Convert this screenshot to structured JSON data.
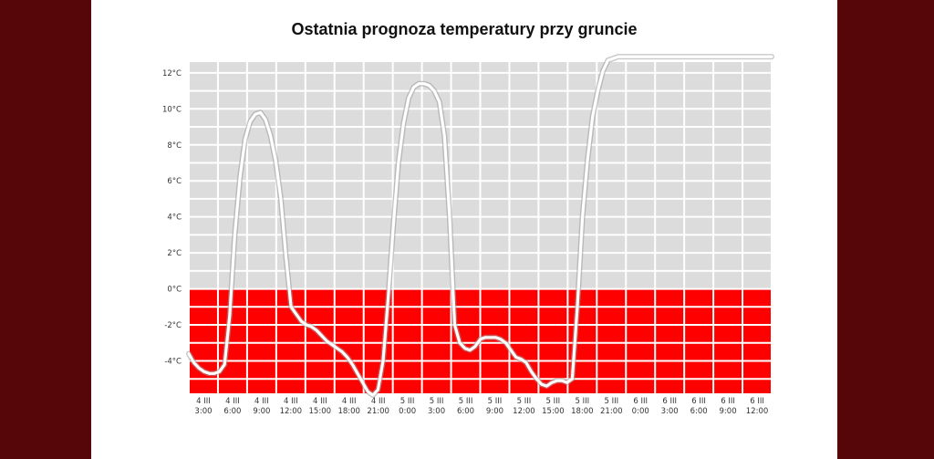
{
  "colors": {
    "page_background": "#560608",
    "panel_background": "#ffffff",
    "above_zero_fill": "#dcdcdc",
    "below_zero_fill": "#ff0000",
    "grid": "#ffffff",
    "line": "#ffffff"
  },
  "chart_data": {
    "type": "line",
    "title": "Ostatnia prognoza temperatury przy gruncie",
    "xlabel": "",
    "ylabel": "",
    "y_ticks": [
      "12°C",
      "10°C",
      "8°C",
      "6°C",
      "4°C",
      "2°C",
      "0°C",
      "-2°C",
      "-4°C"
    ],
    "ylim": [
      -5.8,
      12.6
    ],
    "grid": true,
    "x_ticks": [
      {
        "day": "4 III",
        "time": "3:00"
      },
      {
        "day": "4 III",
        "time": "6:00"
      },
      {
        "day": "4 III",
        "time": "9:00"
      },
      {
        "day": "4 III",
        "time": "12:00"
      },
      {
        "day": "4 III",
        "time": "15:00"
      },
      {
        "day": "4 III",
        "time": "18:00"
      },
      {
        "day": "4 III",
        "time": "21:00"
      },
      {
        "day": "5 III",
        "time": "0:00"
      },
      {
        "day": "5 III",
        "time": "3:00"
      },
      {
        "day": "5 III",
        "time": "6:00"
      },
      {
        "day": "5 III",
        "time": "9:00"
      },
      {
        "day": "5 III",
        "time": "12:00"
      },
      {
        "day": "5 III",
        "time": "15:00"
      },
      {
        "day": "5 III",
        "time": "18:00"
      },
      {
        "day": "5 III",
        "time": "21:00"
      },
      {
        "day": "6 III",
        "time": "0:00"
      },
      {
        "day": "6 III",
        "time": "3:00"
      },
      {
        "day": "6 III",
        "time": "6:00"
      },
      {
        "day": "6 III",
        "time": "9:00"
      },
      {
        "day": "6 III",
        "time": "12:00"
      }
    ],
    "series": [
      {
        "x_hours": [
          0,
          1,
          2,
          3,
          4,
          5,
          6,
          7,
          8,
          9,
          10,
          11,
          12,
          13,
          14,
          15,
          16,
          17,
          18,
          19,
          20,
          21,
          22,
          23,
          24,
          25,
          26,
          27,
          28,
          29,
          30,
          31,
          32,
          33,
          34,
          35,
          36,
          37,
          38,
          39,
          40,
          41,
          42,
          43,
          44,
          45,
          46,
          47,
          48,
          49,
          50,
          51,
          52,
          53,
          54,
          55,
          56,
          57,
          58,
          59,
          60,
          61,
          62,
          63,
          64,
          65,
          66,
          67,
          68,
          69,
          70,
          71,
          72,
          73,
          74,
          75,
          76,
          77,
          78,
          79,
          80,
          81,
          82,
          83,
          84,
          85,
          86,
          87,
          88,
          89,
          90,
          91,
          92,
          93,
          94,
          95,
          96,
          97,
          98,
          99,
          100,
          101,
          102,
          103,
          104,
          105,
          106,
          107,
          108,
          109,
          110,
          111,
          112,
          113,
          114
        ],
        "values": [
          -3.6,
          -4.1,
          -4.4,
          -4.6,
          -4.7,
          -4.7,
          -4.6,
          -4.2,
          -1.5,
          3.0,
          6.2,
          8.3,
          9.3,
          9.7,
          9.8,
          9.4,
          8.5,
          7.1,
          5.0,
          1.8,
          -1.0,
          -1.4,
          -1.8,
          -2.0,
          -2.1,
          -2.3,
          -2.6,
          -2.9,
          -3.1,
          -3.3,
          -3.5,
          -3.8,
          -4.2,
          -4.7,
          -5.2,
          -5.7,
          -5.9,
          -5.6,
          -4.0,
          -0.5,
          3.5,
          7.0,
          9.2,
          10.6,
          11.2,
          11.4,
          11.4,
          11.3,
          11.0,
          10.4,
          8.5,
          4.0,
          -2.0,
          -3.0,
          -3.3,
          -3.4,
          -3.2,
          -2.8,
          -2.7,
          -2.7,
          -2.7,
          -2.8,
          -3.0,
          -3.4,
          -3.8,
          -3.9,
          -4.1,
          -4.6,
          -5.0,
          -5.3,
          -5.4,
          -5.2,
          -5.1,
          -5.1,
          -5.2,
          -5.0,
          -1.0,
          4.0,
          7.2,
          9.6,
          11.0,
          12.1,
          12.7,
          12.8,
          12.9,
          12.9,
          12.9,
          12.9,
          12.9,
          12.9,
          12.9,
          12.9,
          12.9,
          12.9,
          12.9,
          12.9,
          12.9,
          12.9,
          12.9,
          12.9,
          12.9,
          12.9,
          12.9,
          12.9,
          12.9,
          12.9,
          12.9,
          12.9,
          12.9,
          12.9,
          12.9,
          12.9,
          12.9,
          12.9,
          12.9
        ]
      }
    ]
  }
}
